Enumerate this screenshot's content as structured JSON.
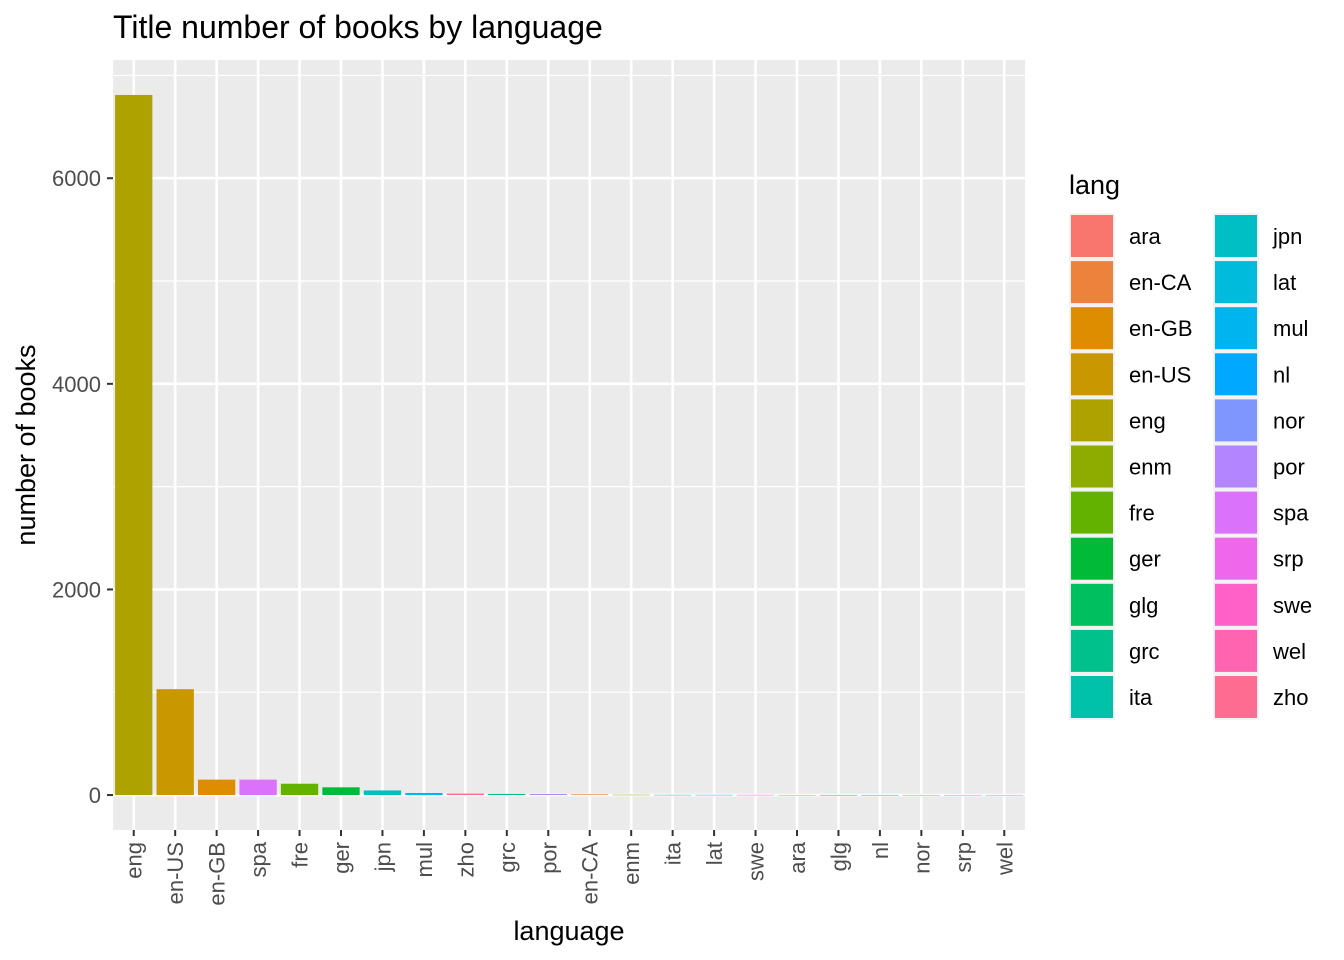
{
  "chart_data": {
    "type": "bar",
    "title": "Title number of books by language",
    "xlabel": "language",
    "ylabel": "number of books",
    "categories": [
      "eng",
      "en-US",
      "en-GB",
      "spa",
      "fre",
      "ger",
      "jpn",
      "mul",
      "zho",
      "grc",
      "por",
      "en-CA",
      "enm",
      "ita",
      "lat",
      "swe",
      "ara",
      "glg",
      "nl",
      "nor",
      "srp",
      "wel"
    ],
    "values": [
      6810,
      1030,
      150,
      150,
      110,
      75,
      45,
      20,
      14,
      11,
      10,
      7,
      3,
      2,
      2,
      2,
      1,
      1,
      1,
      1,
      1,
      1
    ],
    "yticks": [
      0,
      2000,
      4000,
      6000
    ],
    "ytick_labels": [
      "0",
      "2000",
      "4000",
      "6000"
    ],
    "ylim": [
      -340,
      7150
    ],
    "grid": true,
    "legend": {
      "title": "lang",
      "placement": "right",
      "entries": [
        {
          "label": "ara",
          "color": "#F8766D"
        },
        {
          "label": "en-CA",
          "color": "#EC823C"
        },
        {
          "label": "en-GB",
          "color": "#DE8C00"
        },
        {
          "label": "en-US",
          "color": "#C99800"
        },
        {
          "label": "eng",
          "color": "#ADA200"
        },
        {
          "label": "enm",
          "color": "#8EAB00"
        },
        {
          "label": "fre",
          "color": "#64B200"
        },
        {
          "label": "ger",
          "color": "#00BA38"
        },
        {
          "label": "glg",
          "color": "#00BF5E"
        },
        {
          "label": "grc",
          "color": "#00C08B"
        },
        {
          "label": "ita",
          "color": "#00C1A9"
        },
        {
          "label": "jpn",
          "color": "#00BFC4"
        },
        {
          "label": "lat",
          "color": "#00BBDB"
        },
        {
          "label": "mul",
          "color": "#00B4F0"
        },
        {
          "label": "nl",
          "color": "#00A9FF"
        },
        {
          "label": "nor",
          "color": "#7F96FF"
        },
        {
          "label": "por",
          "color": "#B385FF"
        },
        {
          "label": "spa",
          "color": "#DB72FB"
        },
        {
          "label": "srp",
          "color": "#EF67EB"
        },
        {
          "label": "swe",
          "color": "#FF61C9"
        },
        {
          "label": "wel",
          "color": "#FF64B0"
        },
        {
          "label": "zho",
          "color": "#FF6C91"
        }
      ]
    }
  }
}
